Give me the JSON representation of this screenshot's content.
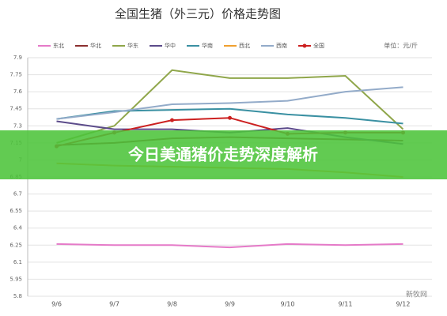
{
  "chart_data": {
    "type": "line",
    "title": "全国生猪（外三元）价格走势图",
    "unit": "单位：元/斤",
    "banner": "今日美通猪价走势深度解析",
    "watermark": "新牧网",
    "categories": [
      "9/6",
      "9/7",
      "9/8",
      "9/9",
      "9/10",
      "9/11",
      "9/12"
    ],
    "ylim": [
      5.8,
      7.9
    ],
    "yticks": [
      5.8,
      5.95,
      6.1,
      6.25,
      6.4,
      6.55,
      6.7,
      6.85,
      7,
      7.15,
      7.3,
      7.45,
      7.6,
      7.75,
      7.9
    ],
    "grid": true,
    "series": [
      {
        "name": "东北",
        "color": "#e57ac8",
        "values": [
          6.26,
          6.25,
          6.25,
          6.23,
          6.26,
          6.25,
          6.26
        ]
      },
      {
        "name": "华北",
        "color": "#8b2f2f",
        "values": [
          7.13,
          7.15,
          7.19,
          7.2,
          7.19,
          7.18,
          7.17
        ]
      },
      {
        "name": "华东",
        "color": "#8fa64a",
        "values": [
          7.15,
          7.3,
          7.79,
          7.72,
          7.72,
          7.74,
          7.27
        ]
      },
      {
        "name": "华中",
        "color": "#5b4b8a",
        "values": [
          7.34,
          7.27,
          7.27,
          7.24,
          7.28,
          7.2,
          7.14
        ]
      },
      {
        "name": "华南",
        "color": "#3a90a2",
        "values": [
          7.36,
          7.43,
          7.44,
          7.45,
          7.4,
          7.37,
          7.32
        ]
      },
      {
        "name": "西北",
        "color": "#f0a030",
        "values": [
          6.97,
          6.95,
          6.94,
          6.93,
          6.92,
          6.89,
          6.85
        ]
      },
      {
        "name": "西南",
        "color": "#93abc9",
        "values": [
          7.36,
          7.42,
          7.49,
          7.5,
          7.52,
          7.6,
          7.64
        ]
      },
      {
        "name": "全国",
        "color": "#cc2020",
        "markers": true,
        "values": [
          7.12,
          7.24,
          7.35,
          7.37,
          7.23,
          7.24,
          7.24
        ]
      }
    ]
  }
}
